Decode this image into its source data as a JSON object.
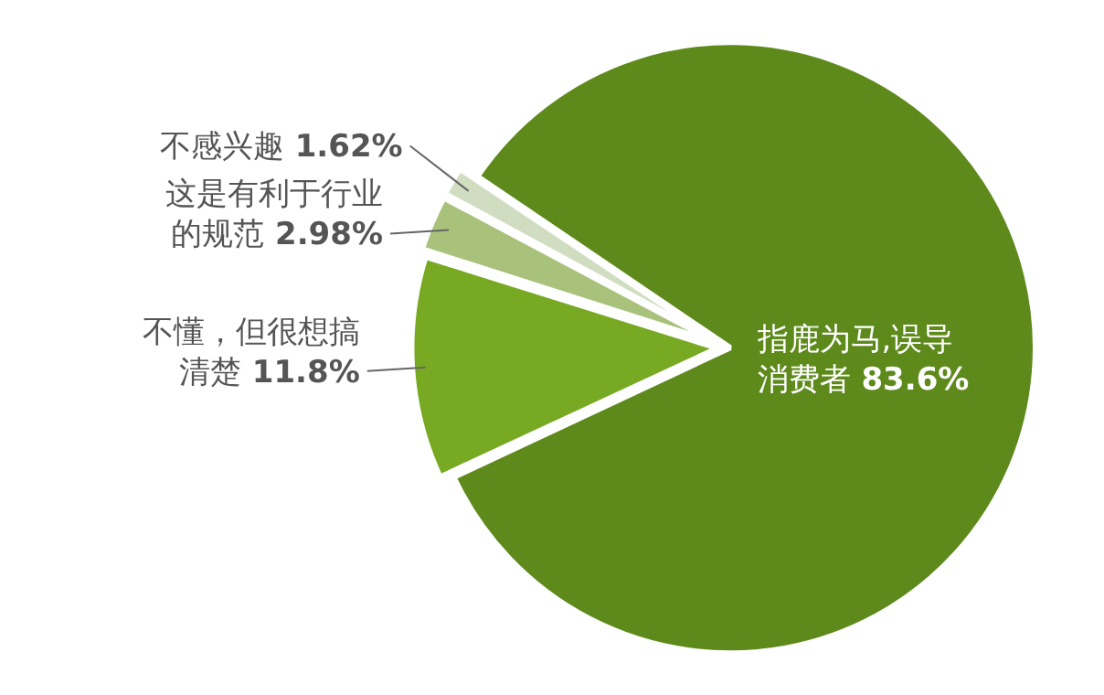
{
  "chart_data": {
    "type": "pie",
    "categories": [
      "指鹿为马,误导消费者",
      "不懂，但很想搞清楚",
      "这是有利于行业的规范",
      "不感兴趣"
    ],
    "values": [
      83.6,
      11.8,
      2.98,
      1.62
    ],
    "colors": [
      "#5e8a1c",
      "#78a922",
      "#a8c27c",
      "#d0ddc0"
    ],
    "value_labels": [
      "83.6%",
      "11.8%",
      "2.98%",
      "1.62%"
    ],
    "legend": false
  }
}
